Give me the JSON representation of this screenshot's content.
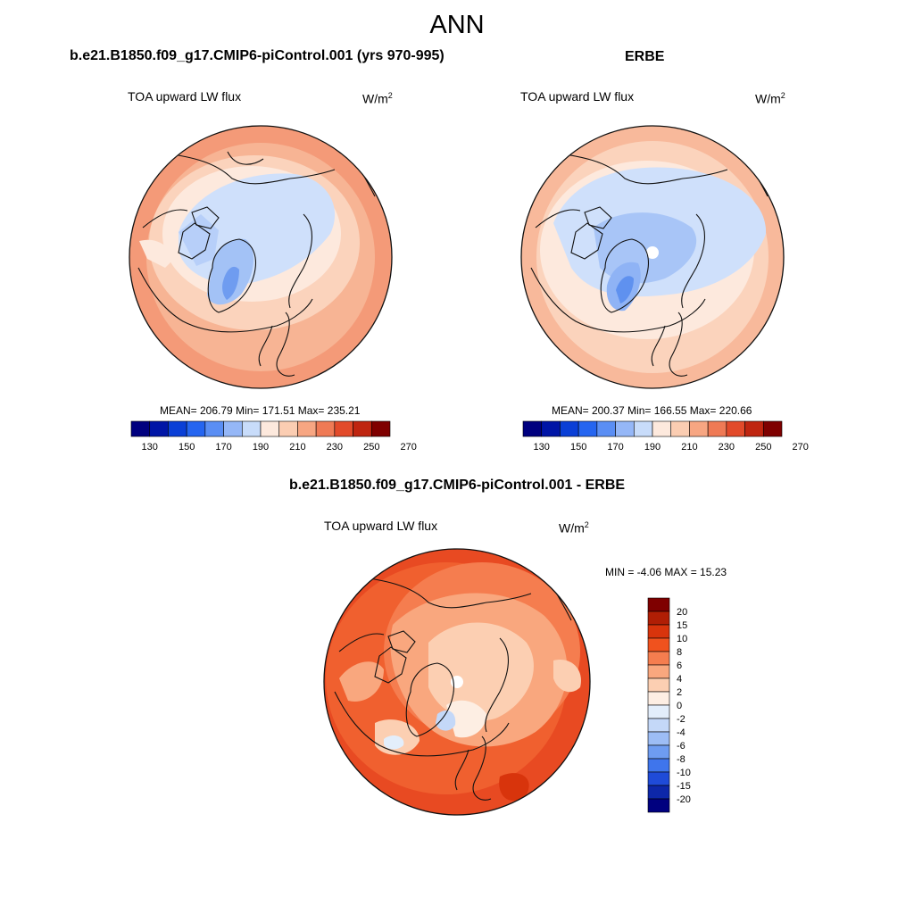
{
  "title": "ANN",
  "panels": [
    {
      "heading": "b.e21.B1850.f09_g17.CMIP6-piControl.001 (yrs 970-995)",
      "variable": "TOA upward LW flux",
      "units_base": "W/m",
      "units_exp": "2",
      "stats": "MEAN= 206.79  Min= 171.51  Max= 235.21",
      "colorbar_labels": [
        "130",
        "150",
        "170",
        "190",
        "210",
        "230",
        "250",
        "270"
      ]
    },
    {
      "heading": "ERBE",
      "variable": "TOA upward LW flux",
      "units_base": "W/m",
      "units_exp": "2",
      "stats": "MEAN= 200.37  Min= 166.55  Max= 220.66",
      "colorbar_labels": [
        "130",
        "150",
        "170",
        "190",
        "210",
        "230",
        "250",
        "270"
      ]
    },
    {
      "heading": "b.e21.B1850.f09_g17.CMIP6-piControl.001 - ERBE",
      "variable": "TOA upward LW flux",
      "units_base": "W/m",
      "units_exp": "2",
      "stats": "MIN =  -4.06 MAX =  15.23",
      "colorbar_labels": [
        "20",
        "15",
        "10",
        "8",
        "6",
        "4",
        "2",
        "0",
        "-2",
        "-4",
        "-6",
        "-8",
        "-10",
        "-15",
        "-20"
      ]
    }
  ],
  "colors": {
    "abs_scale": [
      "#00007f",
      "#0015a6",
      "#0a3fd6",
      "#2565f0",
      "#5a8ef4",
      "#95b7f7",
      "#c8dcfa",
      "#fde9dd",
      "#fbcdb2",
      "#f7a682",
      "#ef7a55",
      "#e24a2a",
      "#bf2510",
      "#7f0000"
    ],
    "diff_scale": [
      "#7f0000",
      "#b01e05",
      "#d8340c",
      "#f0521e",
      "#f57d4f",
      "#f9a77e",
      "#fccfb2",
      "#fdeee3",
      "#e3eefb",
      "#c4d8f8",
      "#9dbdf5",
      "#6e9cf1",
      "#3f75ec",
      "#1f4bd8",
      "#0d27a9",
      "#00007f"
    ]
  }
}
